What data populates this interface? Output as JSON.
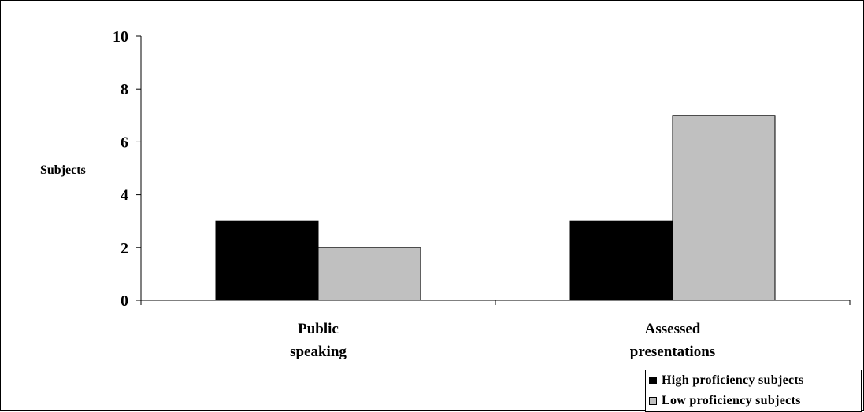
{
  "chart_data": {
    "type": "bar",
    "categories": [
      [
        "Public",
        "speaking"
      ],
      [
        "Assessed",
        "presentations"
      ]
    ],
    "series": [
      {
        "name": "High proficiency subjects",
        "values": [
          3,
          3
        ],
        "color": "#000000"
      },
      {
        "name": "Low proficiency subjects",
        "values": [
          2,
          7
        ],
        "color": "#c0c0c0"
      }
    ],
    "ylabel": "Subjects",
    "ylim": [
      0,
      10
    ],
    "yticks": [
      0,
      2,
      4,
      6,
      8,
      10
    ],
    "grid": false,
    "legend_position": "bottom-right"
  }
}
